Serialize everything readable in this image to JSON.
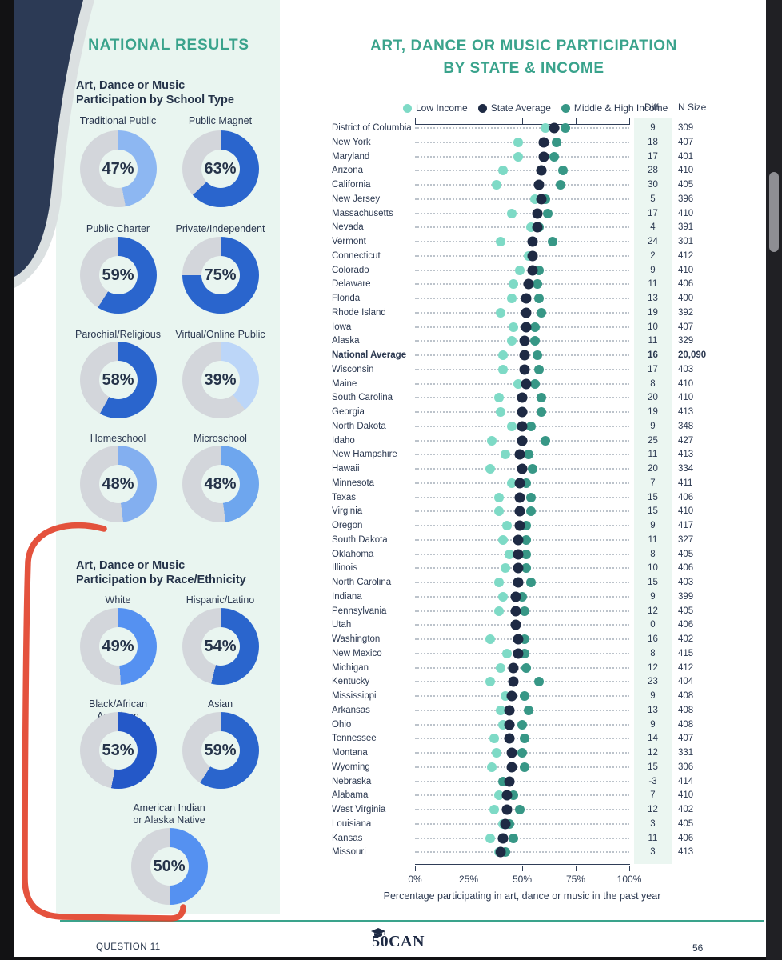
{
  "left_panel": {
    "title": "NATIONAL RESULTS",
    "school_type_heading": "Art, Dance or Music\nParticipation by School Type",
    "race_heading": "Art, Dance or Music\nParticipation by Race/Ethnicity"
  },
  "chart": {
    "title": "ART, DANCE OR MUSIC PARTICIPATION\nBY STATE & INCOME",
    "diff_header": "Diff.",
    "nsize_header": "N Size"
  },
  "footer": {
    "question": "QUESTION 11",
    "logo": "50CAN",
    "page_number": "56"
  },
  "colors": {
    "accent_teal": "#3aa38c",
    "navy_text": "#253349",
    "donut_track": "#d3d6db",
    "low_income": "#7edac6",
    "state_average": "#1e2a44",
    "middle_high_income": "#379786",
    "red_annotation": "#e2432c"
  },
  "chart_data": [
    {
      "type": "pie",
      "subtype": "donut-gauges",
      "title": "Art, Dance or Music Participation by School Type",
      "unit": "%",
      "categories": [
        "Traditional Public",
        "Public Magnet",
        "Public Charter",
        "Private/Independent",
        "Parochial/Religious",
        "Virtual/Online Public",
        "Homeschool",
        "Microschool"
      ],
      "values": [
        47,
        63,
        59,
        75,
        58,
        39,
        48,
        48
      ],
      "colors": [
        "#8db7f2",
        "#2a65cd",
        "#2a65cd",
        "#2a65cd",
        "#2a65cd",
        "#bcd6f8",
        "#83aff0",
        "#6ea6ee"
      ]
    },
    {
      "type": "pie",
      "subtype": "donut-gauges",
      "title": "Art, Dance or Music Participation by Race/Ethnicity",
      "unit": "%",
      "categories": [
        "White",
        "Hispanic/Latino",
        "Black/African American",
        "Asian",
        "American Indian\nor Alaska Native"
      ],
      "values": [
        49,
        54,
        53,
        59,
        50
      ],
      "colors": [
        "#5591f1",
        "#2a65cd",
        "#2458c8",
        "#2a65cd",
        "#5591f1"
      ]
    },
    {
      "type": "scatter",
      "subtype": "dot-plot",
      "title": "ART, DANCE OR MUSIC PARTICIPATION BY STATE & INCOME",
      "legend": [
        "Low Income",
        "State Average",
        "Middle & High Income"
      ],
      "legend_colors": [
        "#7edac6",
        "#1e2a44",
        "#379786"
      ],
      "columns": [
        "Diff.",
        "N Size"
      ],
      "xlabel": "Percentage participating in art, dance or music in the past year",
      "x_ticks": [
        "0%",
        "25%",
        "50%",
        "75%",
        "100%"
      ],
      "xlim": [
        0,
        100
      ],
      "grid": "dotted-row-leaders",
      "legend_position": "top",
      "rows": [
        {
          "state": "District of Columbia",
          "low": 61,
          "avg": 65,
          "high": 70,
          "diff": 9,
          "n": "309"
        },
        {
          "state": "New York",
          "low": 48,
          "avg": 60,
          "high": 66,
          "diff": 18,
          "n": "407"
        },
        {
          "state": "Maryland",
          "low": 48,
          "avg": 60,
          "high": 65,
          "diff": 17,
          "n": "401"
        },
        {
          "state": "Arizona",
          "low": 41,
          "avg": 59,
          "high": 69,
          "diff": 28,
          "n": "410"
        },
        {
          "state": "California",
          "low": 38,
          "avg": 58,
          "high": 68,
          "diff": 30,
          "n": "405"
        },
        {
          "state": "New Jersey",
          "low": 56,
          "avg": 59,
          "high": 61,
          "diff": 5,
          "n": "396"
        },
        {
          "state": "Massachusetts",
          "low": 45,
          "avg": 57,
          "high": 62,
          "diff": 17,
          "n": "410"
        },
        {
          "state": "Nevada",
          "low": 54,
          "avg": 57,
          "high": 58,
          "diff": 4,
          "n": "391"
        },
        {
          "state": "Vermont",
          "low": 40,
          "avg": 55,
          "high": 64,
          "diff": 24,
          "n": "301"
        },
        {
          "state": "Connecticut",
          "low": 53,
          "avg": 55,
          "high": 55,
          "diff": 2,
          "n": "412"
        },
        {
          "state": "Colorado",
          "low": 49,
          "avg": 55,
          "high": 58,
          "diff": 9,
          "n": "410"
        },
        {
          "state": "Delaware",
          "low": 46,
          "avg": 53,
          "high": 57,
          "diff": 11,
          "n": "406"
        },
        {
          "state": "Florida",
          "low": 45,
          "avg": 52,
          "high": 58,
          "diff": 13,
          "n": "400"
        },
        {
          "state": "Rhode Island",
          "low": 40,
          "avg": 52,
          "high": 59,
          "diff": 19,
          "n": "392"
        },
        {
          "state": "Iowa",
          "low": 46,
          "avg": 52,
          "high": 56,
          "diff": 10,
          "n": "407"
        },
        {
          "state": "Alaska",
          "low": 45,
          "avg": 51,
          "high": 56,
          "diff": 11,
          "n": "329"
        },
        {
          "state": "National Average",
          "low": 41,
          "avg": 51,
          "high": 57,
          "diff": 16,
          "n": "20,090",
          "bold": true
        },
        {
          "state": "Wisconsin",
          "low": 41,
          "avg": 51,
          "high": 58,
          "diff": 17,
          "n": "403"
        },
        {
          "state": "Maine",
          "low": 48,
          "avg": 52,
          "high": 56,
          "diff": 8,
          "n": "410"
        },
        {
          "state": "South Carolina",
          "low": 39,
          "avg": 50,
          "high": 59,
          "diff": 20,
          "n": "410"
        },
        {
          "state": "Georgia",
          "low": 40,
          "avg": 50,
          "high": 59,
          "diff": 19,
          "n": "413"
        },
        {
          "state": "North Dakota",
          "low": 45,
          "avg": 50,
          "high": 54,
          "diff": 9,
          "n": "348"
        },
        {
          "state": "Idaho",
          "low": 36,
          "avg": 50,
          "high": 61,
          "diff": 25,
          "n": "427"
        },
        {
          "state": "New Hampshire",
          "low": 42,
          "avg": 49,
          "high": 53,
          "diff": 11,
          "n": "413"
        },
        {
          "state": "Hawaii",
          "low": 35,
          "avg": 50,
          "high": 55,
          "diff": 20,
          "n": "334"
        },
        {
          "state": "Minnesota",
          "low": 45,
          "avg": 49,
          "high": 52,
          "diff": 7,
          "n": "411"
        },
        {
          "state": "Texas",
          "low": 39,
          "avg": 49,
          "high": 54,
          "diff": 15,
          "n": "406"
        },
        {
          "state": "Virginia",
          "low": 39,
          "avg": 49,
          "high": 54,
          "diff": 15,
          "n": "410"
        },
        {
          "state": "Oregon",
          "low": 43,
          "avg": 49,
          "high": 52,
          "diff": 9,
          "n": "417"
        },
        {
          "state": "South Dakota",
          "low": 41,
          "avg": 48,
          "high": 52,
          "diff": 11,
          "n": "327"
        },
        {
          "state": "Oklahoma",
          "low": 44,
          "avg": 48,
          "high": 52,
          "diff": 8,
          "n": "405"
        },
        {
          "state": "Illinois",
          "low": 42,
          "avg": 48,
          "high": 52,
          "diff": 10,
          "n": "406"
        },
        {
          "state": "North Carolina",
          "low": 39,
          "avg": 48,
          "high": 54,
          "diff": 15,
          "n": "403"
        },
        {
          "state": "Indiana",
          "low": 41,
          "avg": 47,
          "high": 50,
          "diff": 9,
          "n": "399"
        },
        {
          "state": "Pennsylvania",
          "low": 39,
          "avg": 47,
          "high": 51,
          "diff": 12,
          "n": "405"
        },
        {
          "state": "Utah",
          "low": 47,
          "avg": 47,
          "high": 47,
          "diff": 0,
          "n": "406"
        },
        {
          "state": "Washington",
          "low": 35,
          "avg": 48,
          "high": 51,
          "diff": 16,
          "n": "402"
        },
        {
          "state": "New Mexico",
          "low": 43,
          "avg": 48,
          "high": 51,
          "diff": 8,
          "n": "415"
        },
        {
          "state": "Michigan",
          "low": 40,
          "avg": 46,
          "high": 52,
          "diff": 12,
          "n": "412"
        },
        {
          "state": "Kentucky",
          "low": 35,
          "avg": 46,
          "high": 58,
          "diff": 23,
          "n": "404"
        },
        {
          "state": "Mississippi",
          "low": 42,
          "avg": 45,
          "high": 51,
          "diff": 9,
          "n": "408"
        },
        {
          "state": "Arkansas",
          "low": 40,
          "avg": 44,
          "high": 53,
          "diff": 13,
          "n": "408"
        },
        {
          "state": "Ohio",
          "low": 41,
          "avg": 44,
          "high": 50,
          "diff": 9,
          "n": "408"
        },
        {
          "state": "Tennessee",
          "low": 37,
          "avg": 44,
          "high": 51,
          "diff": 14,
          "n": "407"
        },
        {
          "state": "Montana",
          "low": 38,
          "avg": 45,
          "high": 50,
          "diff": 12,
          "n": "331"
        },
        {
          "state": "Wyoming",
          "low": 36,
          "avg": 45,
          "high": 51,
          "diff": 15,
          "n": "306"
        },
        {
          "state": "Nebraska",
          "low": 44,
          "avg": 44,
          "high": 41,
          "diff": -3,
          "n": "414"
        },
        {
          "state": "Alabama",
          "low": 39,
          "avg": 43,
          "high": 46,
          "diff": 7,
          "n": "410"
        },
        {
          "state": "West Virginia",
          "low": 37,
          "avg": 43,
          "high": 49,
          "diff": 12,
          "n": "402"
        },
        {
          "state": "Louisiana",
          "low": 41,
          "avg": 42,
          "high": 44,
          "diff": 3,
          "n": "405"
        },
        {
          "state": "Kansas",
          "low": 35,
          "avg": 41,
          "high": 46,
          "diff": 11,
          "n": "406"
        },
        {
          "state": "Missouri",
          "low": 39,
          "avg": 40,
          "high": 42,
          "diff": 3,
          "n": "413"
        }
      ]
    }
  ]
}
